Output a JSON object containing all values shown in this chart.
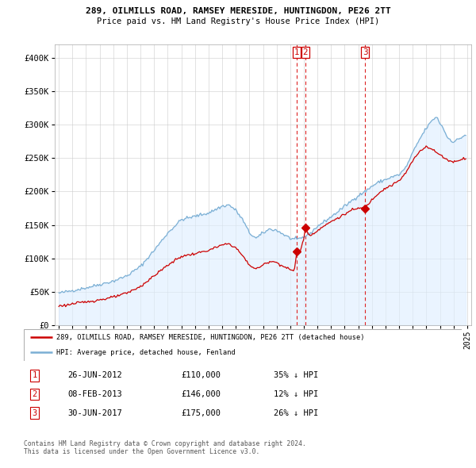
{
  "title1": "289, OILMILLS ROAD, RAMSEY MERESIDE, HUNTINGDON, PE26 2TT",
  "title2": "Price paid vs. HM Land Registry's House Price Index (HPI)",
  "legend_line1": "289, OILMILLS ROAD, RAMSEY MERESIDE, HUNTINGDON, PE26 2TT (detached house)",
  "legend_line2": "HPI: Average price, detached house, Fenland",
  "sale_color": "#cc0000",
  "hpi_color": "#7bafd4",
  "hpi_fill": "#ddeeff",
  "vline_color": "#dd2222",
  "transactions": [
    {
      "num": 1,
      "date": "26-JUN-2012",
      "price": 110000,
      "pct": "35% ↓ HPI",
      "year": 2012.49
    },
    {
      "num": 2,
      "date": "08-FEB-2013",
      "price": 146000,
      "pct": "12% ↓ HPI",
      "year": 2013.11
    },
    {
      "num": 3,
      "date": "30-JUN-2017",
      "price": 175000,
      "pct": "26% ↓ HPI",
      "year": 2017.5
    }
  ],
  "footer1": "Contains HM Land Registry data © Crown copyright and database right 2024.",
  "footer2": "This data is licensed under the Open Government Licence v3.0.",
  "ylim": [
    0,
    420000
  ],
  "yticks": [
    0,
    50000,
    100000,
    150000,
    200000,
    250000,
    300000,
    350000,
    400000
  ],
  "ytick_labels": [
    "£0",
    "£50K",
    "£100K",
    "£150K",
    "£200K",
    "£250K",
    "£300K",
    "£350K",
    "£400K"
  ]
}
